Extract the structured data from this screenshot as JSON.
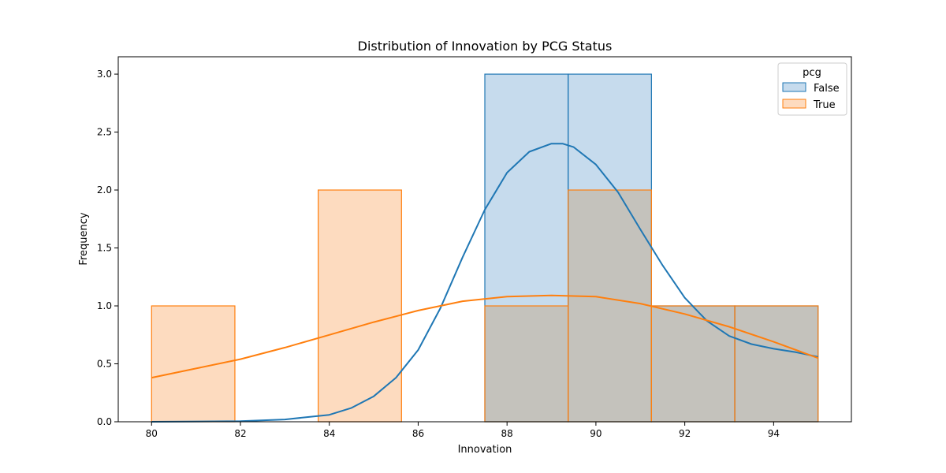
{
  "chart_data": {
    "type": "histogram",
    "title": "Distribution of Innovation by PCG Status",
    "xlabel": "Innovation",
    "ylabel": "Frequency",
    "xlim": [
      79.25,
      95.75
    ],
    "ylim": [
      0,
      3.15
    ],
    "xticks": [
      80,
      82,
      84,
      86,
      88,
      90,
      92,
      94
    ],
    "yticks": [
      0.0,
      0.5,
      1.0,
      1.5,
      2.0,
      2.5,
      3.0
    ],
    "ytick_labels": [
      "0.0",
      "0.5",
      "1.0",
      "1.5",
      "2.0",
      "2.5",
      "3.0"
    ],
    "bin_edges": [
      80.0,
      81.875,
      83.75,
      85.625,
      87.5,
      89.375,
      91.25,
      93.125,
      95.0
    ],
    "grid": false,
    "legend": {
      "title": "pcg",
      "position": "top-right"
    },
    "series": [
      {
        "name": "False",
        "color": "#1f77b4",
        "fill": "#c6dbed",
        "counts": [
          0,
          0,
          0,
          0,
          3,
          3,
          1,
          1
        ],
        "kde": {
          "x": [
            80,
            82,
            83,
            84,
            84.5,
            85,
            85.5,
            86,
            86.5,
            87,
            87.5,
            88,
            88.5,
            89,
            89.25,
            89.5,
            90,
            90.5,
            91,
            91.5,
            92,
            92.5,
            93,
            93.5,
            94,
            94.5,
            95
          ],
          "y": [
            0.0,
            0.005,
            0.02,
            0.06,
            0.12,
            0.22,
            0.38,
            0.62,
            0.98,
            1.42,
            1.83,
            2.15,
            2.33,
            2.4,
            2.4,
            2.37,
            2.22,
            1.98,
            1.66,
            1.35,
            1.07,
            0.87,
            0.74,
            0.67,
            0.63,
            0.6,
            0.56
          ]
        }
      },
      {
        "name": "True",
        "color": "#ff7f0e",
        "fill": "#fddbbf",
        "counts": [
          1,
          0,
          2,
          0,
          1,
          2,
          1,
          1
        ],
        "kde": {
          "x": [
            80,
            81,
            82,
            83,
            84,
            85,
            86,
            87,
            88,
            89,
            90,
            91,
            92,
            93,
            94,
            95
          ],
          "y": [
            0.38,
            0.46,
            0.54,
            0.64,
            0.75,
            0.86,
            0.96,
            1.04,
            1.08,
            1.09,
            1.08,
            1.02,
            0.93,
            0.82,
            0.69,
            0.55
          ]
        }
      }
    ],
    "overlap_fill": "#c4c2bc"
  }
}
